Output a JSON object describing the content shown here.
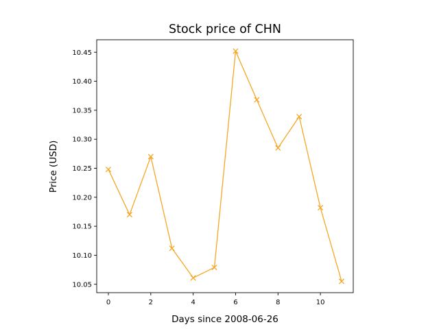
{
  "chart_data": {
    "type": "line",
    "title": "Stock price of CHN",
    "xlabel": "Days since 2008-06-26",
    "ylabel": "Price (USD)",
    "x": [
      0,
      1,
      2,
      3,
      4,
      5,
      6,
      7,
      8,
      9,
      10,
      11
    ],
    "series": [
      {
        "values": [
          10.248,
          10.17,
          10.27,
          10.112,
          10.061,
          10.079,
          10.452,
          10.368,
          10.285,
          10.339,
          10.182,
          10.055
        ],
        "color": "#f5a623",
        "marker": "x"
      }
    ],
    "xlim": [
      -0.55,
      11.55
    ],
    "ylim": [
      10.0355,
      10.4715
    ],
    "xticks": [
      0,
      2,
      4,
      6,
      8,
      10
    ],
    "xtick_labels": [
      "0",
      "2",
      "4",
      "6",
      "8",
      "10"
    ],
    "yticks": [
      10.05,
      10.1,
      10.15,
      10.2,
      10.25,
      10.3,
      10.35,
      10.4,
      10.45
    ],
    "ytick_labels": [
      "10.05",
      "10.10",
      "10.15",
      "10.20",
      "10.25",
      "10.30",
      "10.35",
      "10.40",
      "10.45"
    ],
    "grid": false,
    "legend": "none"
  }
}
